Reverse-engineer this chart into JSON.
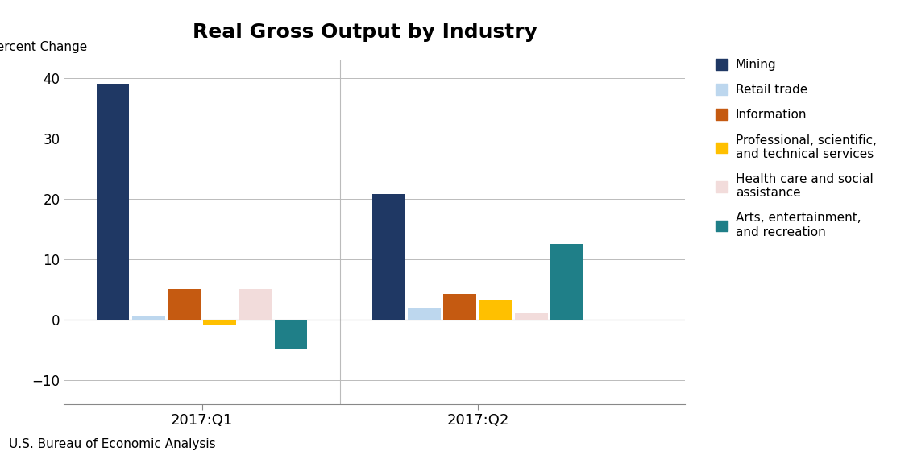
{
  "title": "Real Gross Output by Industry",
  "ylabel": "Percent Change",
  "footnote": "U.S. Bureau of Economic Analysis",
  "quarters": [
    "2017:Q1",
    "2017:Q2"
  ],
  "series": [
    {
      "label": "Mining",
      "color": "#1F3864",
      "values": [
        39.0,
        20.7
      ]
    },
    {
      "label": "Retail trade",
      "color": "#BDD7EE",
      "values": [
        0.5,
        1.8
      ]
    },
    {
      "label": "Information",
      "color": "#C55A11",
      "values": [
        5.0,
        4.2
      ]
    },
    {
      "label": "Professional, scientific,\nand technical services",
      "color": "#FFC000",
      "values": [
        -0.8,
        3.2
      ]
    },
    {
      "label": "Health care and social\nassistance",
      "color": "#F2DCDB",
      "values": [
        5.0,
        1.0
      ]
    },
    {
      "label": "Arts, entertainment,\nand recreation",
      "color": "#1F7F88",
      "values": [
        -5.0,
        12.5
      ]
    }
  ],
  "ylim": [
    -14,
    43
  ],
  "yticks": [
    -10,
    0,
    10,
    20,
    30,
    40
  ],
  "background_color": "#FFFFFF",
  "group_centers": [
    0.35,
    1.15
  ],
  "group_width": 0.62,
  "xlim": [
    -0.05,
    1.75
  ]
}
